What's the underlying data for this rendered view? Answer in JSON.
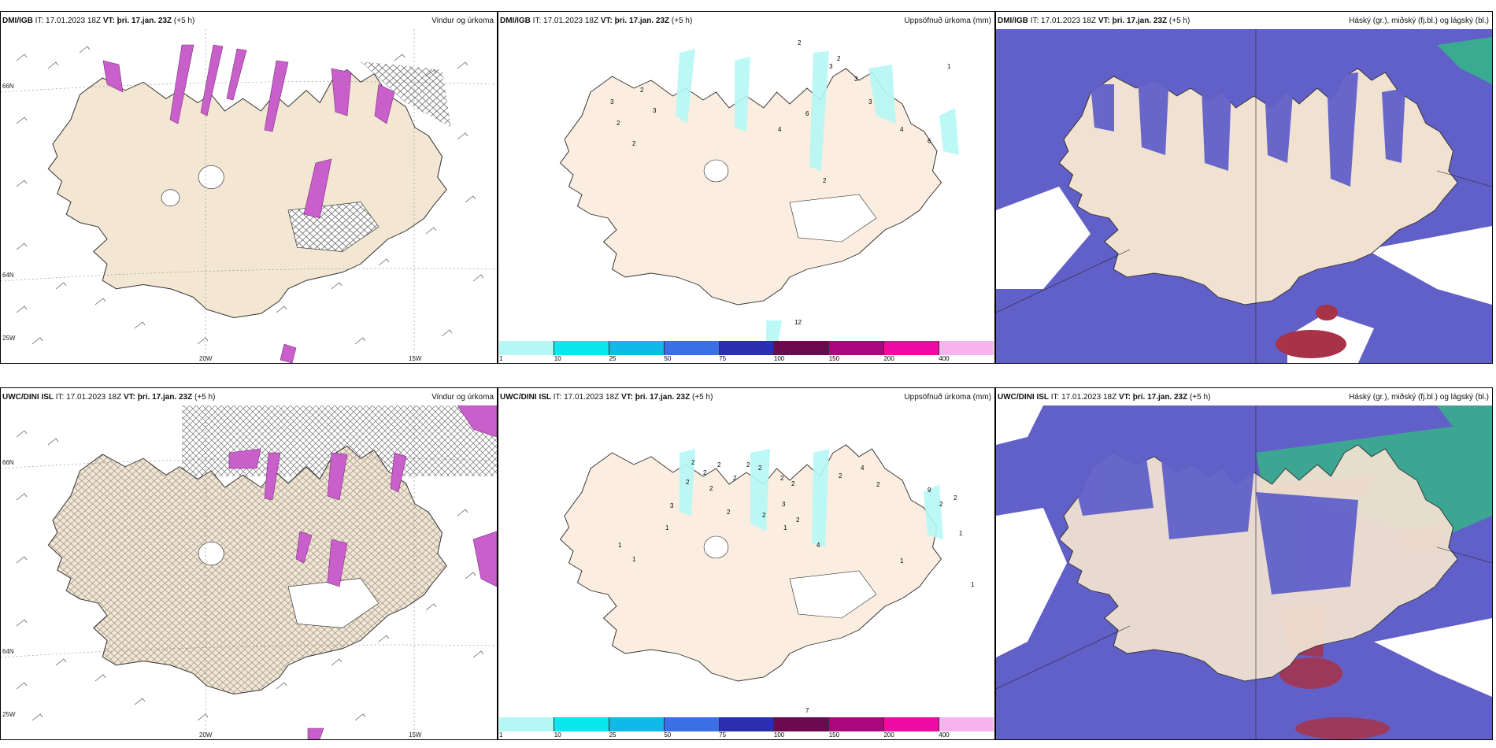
{
  "top_row": [
    {
      "model": "DMI/IGB",
      "it_label": "IT:",
      "issue": "17.01.2023 18Z",
      "vt_label": "VT:",
      "valid": "þri. 17.jan. 23Z",
      "lead": "(+5 h)",
      "title": "Vindur og úrkoma"
    },
    {
      "model": "DMI/IGB",
      "it_label": "IT:",
      "issue": "17.01.2023 18Z",
      "vt_label": "VT:",
      "valid": "þri. 17.jan. 23Z",
      "lead": "(+5 h)",
      "title": "Uppsöfnuð úrkoma (mm)"
    },
    {
      "model": "DMI/IGB",
      "it_label": "IT:",
      "issue": "17.01.2023 18Z",
      "vt_label": "VT:",
      "valid": "þri. 17.jan. 23Z",
      "lead": "(+5 h)",
      "title": "Háský (gr.), miðský (fj.bl.) og lágský (bl.)"
    }
  ],
  "bottom_row": [
    {
      "model": "UWC/DINI ISL",
      "it_label": "IT:",
      "issue": "17.01.2023 18Z",
      "vt_label": "VT:",
      "valid": "þri. 17.jan. 23Z",
      "lead": "(+5 h)",
      "title": "Vindur og úrkoma"
    },
    {
      "model": "UWC/DINI ISL",
      "it_label": "IT:",
      "issue": "17.01.2023 18Z",
      "vt_label": "VT:",
      "valid": "þri. 17.jan. 23Z",
      "lead": "(+5 h)",
      "title": "Uppsöfnuð úrkoma (mm)"
    },
    {
      "model": "UWC/DINI ISL",
      "it_label": "IT:",
      "issue": "17.01.2023 18Z",
      "vt_label": "VT:",
      "valid": "þri. 17.jan. 23Z",
      "lead": "(+5 h)",
      "title": "Háský (gr.), miðský (fj.bl.) og lágský (bl.)"
    }
  ],
  "axis_labels": {
    "lat66": "66N",
    "lat64": "64N",
    "lon20": "20W",
    "lon15": "15W",
    "lon25": "25W"
  },
  "colorbar": {
    "ticks": [
      "1",
      "10",
      "25",
      "50",
      "75",
      "100",
      "150",
      "200",
      "400"
    ],
    "colors": [
      "#b5f7f5",
      "#08e8ee",
      "#0fb9e8",
      "#3a6fe8",
      "#2a2fae",
      "#6b0a4e",
      "#a8077e",
      "#ef0aa4",
      "#f7b3ee"
    ]
  },
  "precip_labels_top": [
    "2",
    "3",
    "3",
    "2",
    "3",
    "4",
    "2",
    "6",
    "3",
    "4",
    "2",
    "6",
    "1",
    "2",
    "12",
    "2",
    "3"
  ],
  "precip_labels_bottom": [
    "2",
    "2",
    "2",
    "2",
    "2",
    "2",
    "3",
    "2",
    "2",
    "2",
    "2",
    "1",
    "2",
    "2",
    "3",
    "2",
    "1",
    "4",
    "2",
    "4",
    "2",
    "9",
    "2",
    "2",
    "1",
    "1",
    "1",
    "1",
    "1",
    "7"
  ],
  "colors": {
    "land": "#f3e6d3",
    "high_cloud": "#6160c9",
    "mid_cloud": "#36b38a",
    "low_cloud": "#a83248",
    "precip": "#c95fcb"
  }
}
